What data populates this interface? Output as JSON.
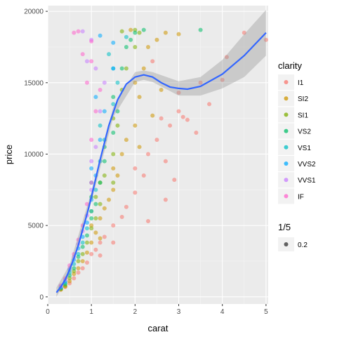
{
  "chart_data": {
    "type": "scatter",
    "xlabel": "carat",
    "ylabel": "price",
    "xlim": [
      0,
      5.05
    ],
    "ylim": [
      -500,
      20400
    ],
    "x_ticks": [
      0,
      1,
      2,
      3,
      4,
      5
    ],
    "y_ticks": [
      0,
      5000,
      10000,
      15000,
      20000
    ],
    "grid": true,
    "point_alpha": 0.2,
    "color_legend": {
      "title": "clarity",
      "placement": "right",
      "entries": [
        {
          "name": "I1",
          "color": "#F8766D"
        },
        {
          "name": "SI2",
          "color": "#CD9600"
        },
        {
          "name": "SI1",
          "color": "#7CAE00"
        },
        {
          "name": "VS2",
          "color": "#00BE67"
        },
        {
          "name": "VS1",
          "color": "#00BFC4"
        },
        {
          "name": "VVS2",
          "color": "#00A9FF"
        },
        {
          "name": "VVS1",
          "color": "#C77CFF"
        },
        {
          "name": "IF",
          "color": "#FF61CC"
        }
      ]
    },
    "alpha_legend": {
      "title": "1/5",
      "entries": [
        {
          "name": "0.2"
        }
      ]
    },
    "series": [
      {
        "name": "I1",
        "color": "#F8766D",
        "points": [
          [
            0.3,
            520
          ],
          [
            0.4,
            700
          ],
          [
            0.5,
            950
          ],
          [
            0.6,
            1300
          ],
          [
            0.7,
            1700
          ],
          [
            0.8,
            2000
          ],
          [
            0.9,
            2400
          ],
          [
            1.0,
            3000
          ],
          [
            1.1,
            3300
          ],
          [
            1.2,
            3800
          ],
          [
            1.3,
            4200
          ],
          [
            1.5,
            5000
          ],
          [
            1.7,
            5600
          ],
          [
            1.8,
            6300
          ],
          [
            2.0,
            7300
          ],
          [
            2.0,
            9000
          ],
          [
            2.2,
            8500
          ],
          [
            2.3,
            10000
          ],
          [
            2.5,
            11000
          ],
          [
            2.6,
            12500
          ],
          [
            2.7,
            9500
          ],
          [
            2.8,
            12000
          ],
          [
            2.9,
            8200
          ],
          [
            3.0,
            13000
          ],
          [
            3.1,
            12600
          ],
          [
            3.2,
            12400
          ],
          [
            3.4,
            11500
          ],
          [
            3.5,
            15000
          ],
          [
            3.7,
            13500
          ],
          [
            4.0,
            15200
          ],
          [
            4.1,
            16800
          ],
          [
            4.5,
            18500
          ],
          [
            5.0,
            18000
          ],
          [
            2.4,
            16500
          ],
          [
            3.0,
            14300
          ],
          [
            2.3,
            5300
          ],
          [
            1.5,
            3800
          ],
          [
            1.2,
            2900
          ],
          [
            2.7,
            6800
          ]
        ]
      },
      {
        "name": "SI2",
        "color": "#CD9600",
        "points": [
          [
            0.3,
            500
          ],
          [
            0.4,
            720
          ],
          [
            0.5,
            1100
          ],
          [
            0.6,
            1600
          ],
          [
            0.7,
            2000
          ],
          [
            0.8,
            2500
          ],
          [
            0.9,
            3100
          ],
          [
            1.0,
            3800
          ],
          [
            1.0,
            5000
          ],
          [
            1.1,
            4500
          ],
          [
            1.2,
            5500
          ],
          [
            1.3,
            6200
          ],
          [
            1.5,
            7500
          ],
          [
            1.5,
            9000
          ],
          [
            1.6,
            8500
          ],
          [
            1.7,
            10000
          ],
          [
            1.8,
            11000
          ],
          [
            2.0,
            12000
          ],
          [
            2.0,
            15000
          ],
          [
            2.1,
            14000
          ],
          [
            2.2,
            16000
          ],
          [
            2.3,
            17500
          ],
          [
            2.5,
            18000
          ],
          [
            2.6,
            14500
          ],
          [
            2.7,
            18500
          ],
          [
            3.0,
            18400
          ],
          [
            1.9,
            18700
          ],
          [
            2.4,
            12700
          ],
          [
            2.1,
            10500
          ],
          [
            1.2,
            4100
          ],
          [
            1.4,
            6800
          ]
        ]
      },
      {
        "name": "SI1",
        "color": "#7CAE00",
        "points": [
          [
            0.3,
            550
          ],
          [
            0.4,
            800
          ],
          [
            0.5,
            1300
          ],
          [
            0.6,
            1800
          ],
          [
            0.7,
            2500
          ],
          [
            0.8,
            3000
          ],
          [
            0.9,
            3800
          ],
          [
            1.0,
            4800
          ],
          [
            1.0,
            6000
          ],
          [
            1.1,
            5500
          ],
          [
            1.2,
            6500
          ],
          [
            1.2,
            8000
          ],
          [
            1.3,
            8500
          ],
          [
            1.5,
            10000
          ],
          [
            1.5,
            12500
          ],
          [
            1.6,
            12000
          ],
          [
            1.7,
            14500
          ],
          [
            1.8,
            16000
          ],
          [
            2.0,
            17500
          ],
          [
            2.1,
            18500
          ],
          [
            1.7,
            18600
          ],
          [
            2.0,
            18700
          ],
          [
            1.5,
            8000
          ],
          [
            1.1,
            7000
          ]
        ]
      },
      {
        "name": "VS2",
        "color": "#00BE67",
        "points": [
          [
            0.3,
            600
          ],
          [
            0.4,
            900
          ],
          [
            0.5,
            1500
          ],
          [
            0.6,
            2000
          ],
          [
            0.7,
            2800
          ],
          [
            0.8,
            3500
          ],
          [
            0.9,
            4300
          ],
          [
            1.0,
            5500
          ],
          [
            1.0,
            7000
          ],
          [
            1.1,
            6500
          ],
          [
            1.2,
            8000
          ],
          [
            1.3,
            9500
          ],
          [
            1.5,
            11500
          ],
          [
            1.5,
            14000
          ],
          [
            1.6,
            13000
          ],
          [
            1.7,
            16000
          ],
          [
            1.8,
            17500
          ],
          [
            2.0,
            18500
          ],
          [
            2.2,
            18700
          ],
          [
            3.5,
            18700
          ],
          [
            1.3,
            10500
          ],
          [
            1.9,
            18000
          ]
        ]
      },
      {
        "name": "VS1",
        "color": "#00BFC4",
        "points": [
          [
            0.3,
            650
          ],
          [
            0.4,
            1000
          ],
          [
            0.5,
            1700
          ],
          [
            0.6,
            2300
          ],
          [
            0.7,
            3000
          ],
          [
            0.8,
            3800
          ],
          [
            0.9,
            4800
          ],
          [
            1.0,
            6000
          ],
          [
            1.0,
            8000
          ],
          [
            1.1,
            7500
          ],
          [
            1.2,
            9500
          ],
          [
            1.3,
            11000
          ],
          [
            1.5,
            13500
          ],
          [
            1.5,
            16000
          ],
          [
            1.6,
            15000
          ],
          [
            1.8,
            18200
          ],
          [
            1.2,
            12000
          ],
          [
            1.4,
            17000
          ]
        ]
      },
      {
        "name": "VVS2",
        "color": "#00A9FF",
        "points": [
          [
            0.3,
            700
          ],
          [
            0.4,
            1100
          ],
          [
            0.5,
            1900
          ],
          [
            0.6,
            2600
          ],
          [
            0.7,
            3400
          ],
          [
            0.8,
            4200
          ],
          [
            0.9,
            5200
          ],
          [
            1.0,
            6800
          ],
          [
            1.0,
            9000
          ],
          [
            1.1,
            8500
          ],
          [
            1.2,
            11000
          ],
          [
            1.3,
            13000
          ],
          [
            1.5,
            16000
          ],
          [
            1.5,
            17800
          ],
          [
            1.1,
            14000
          ],
          [
            1.2,
            18300
          ]
        ]
      },
      {
        "name": "VVS1",
        "color": "#C77CFF",
        "points": [
          [
            0.3,
            750
          ],
          [
            0.4,
            1200
          ],
          [
            0.5,
            2000
          ],
          [
            0.6,
            2800
          ],
          [
            0.7,
            3700
          ],
          [
            0.8,
            4600
          ],
          [
            0.9,
            5700
          ],
          [
            1.0,
            7500
          ],
          [
            1.0,
            9500
          ],
          [
            1.1,
            10500
          ],
          [
            1.2,
            13000
          ],
          [
            1.3,
            15000
          ],
          [
            1.1,
            16000
          ],
          [
            1.0,
            18000
          ],
          [
            0.9,
            16500
          ],
          [
            0.8,
            18600
          ]
        ]
      },
      {
        "name": "IF",
        "color": "#FF61CC",
        "points": [
          [
            0.3,
            800
          ],
          [
            0.4,
            1300
          ],
          [
            0.5,
            2200
          ],
          [
            0.6,
            3000
          ],
          [
            0.7,
            4000
          ],
          [
            0.8,
            5000
          ],
          [
            0.9,
            6500
          ],
          [
            1.0,
            8000
          ],
          [
            1.0,
            11000
          ],
          [
            1.1,
            13000
          ],
          [
            0.9,
            15000
          ],
          [
            1.0,
            16500
          ],
          [
            0.6,
            18500
          ],
          [
            1.0,
            17900
          ],
          [
            0.8,
            17000
          ],
          [
            0.7,
            18600
          ],
          [
            1.2,
            14500
          ]
        ]
      }
    ],
    "smooth": {
      "color": "#3366FF",
      "points": [
        [
          0.2,
          300
        ],
        [
          0.3,
          700
        ],
        [
          0.4,
          1200
        ],
        [
          0.5,
          1900
        ],
        [
          0.6,
          2700
        ],
        [
          0.7,
          3600
        ],
        [
          0.8,
          4700
        ],
        [
          0.9,
          5800
        ],
        [
          1.0,
          7000
        ],
        [
          1.2,
          9600
        ],
        [
          1.4,
          12000
        ],
        [
          1.6,
          13800
        ],
        [
          1.8,
          14900
        ],
        [
          2.0,
          15400
        ],
        [
          2.2,
          15550
        ],
        [
          2.4,
          15400
        ],
        [
          2.6,
          15000
        ],
        [
          2.8,
          14700
        ],
        [
          3.0,
          14600
        ],
        [
          3.2,
          14550
        ],
        [
          3.5,
          14750
        ],
        [
          4.0,
          15600
        ],
        [
          4.5,
          16900
        ],
        [
          5.0,
          18500
        ]
      ],
      "band": {
        "upper": [
          [
            0.2,
            650
          ],
          [
            0.5,
            2250
          ],
          [
            1.0,
            7350
          ],
          [
            1.5,
            13300
          ],
          [
            2.0,
            15750
          ],
          [
            2.2,
            15850
          ],
          [
            2.4,
            15750
          ],
          [
            3.0,
            15100
          ],
          [
            3.5,
            15400
          ],
          [
            4.0,
            16600
          ],
          [
            4.5,
            18400
          ],
          [
            5.0,
            20100
          ]
        ],
        "lower": [
          [
            0.2,
            0
          ],
          [
            0.5,
            1550
          ],
          [
            1.0,
            6650
          ],
          [
            1.5,
            12600
          ],
          [
            2.0,
            15050
          ],
          [
            2.2,
            15200
          ],
          [
            2.4,
            15050
          ],
          [
            3.0,
            14100
          ],
          [
            3.5,
            14100
          ],
          [
            4.0,
            14600
          ],
          [
            4.5,
            15400
          ],
          [
            5.0,
            16900
          ]
        ]
      }
    }
  }
}
